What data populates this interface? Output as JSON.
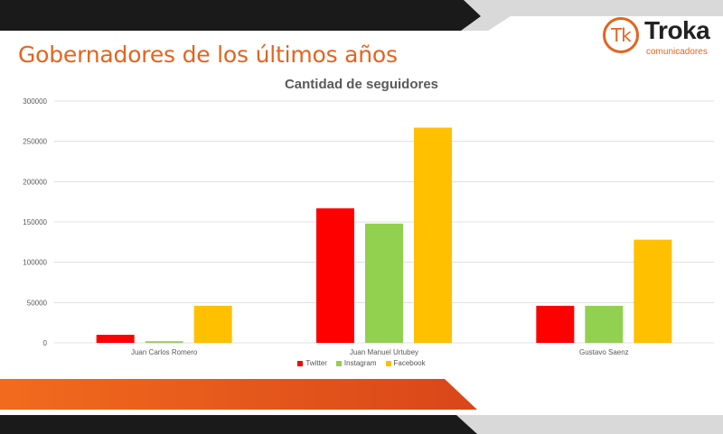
{
  "slide": {
    "title": "Gobernadores de los últimos años"
  },
  "logo": {
    "mark": "Tk",
    "name": "Troka",
    "tagline": "comunicadores"
  },
  "colors": {
    "accent": "#e3641f",
    "dark_band": "#1a1a1a",
    "grey_band": "#d9d9d9"
  },
  "chart_data": {
    "type": "bar",
    "title": "Cantidad de seguidores",
    "xlabel": "",
    "ylabel": "",
    "categories": [
      "Juan Carlos Romero",
      "Juan Manuel Urtubey",
      "Gustavo Saenz"
    ],
    "series": [
      {
        "name": "Twitter",
        "color": "#ff0000",
        "values": [
          10000,
          167000,
          46000
        ]
      },
      {
        "name": "Instagram",
        "color": "#92d050",
        "values": [
          2000,
          148000,
          46000
        ]
      },
      {
        "name": "Facebook",
        "color": "#ffc000",
        "values": [
          46000,
          267000,
          128000
        ]
      }
    ],
    "ylim": [
      0,
      300000
    ],
    "yticks": [
      0,
      50000,
      100000,
      150000,
      200000,
      250000,
      300000
    ],
    "grid": true,
    "legend": "bottom"
  }
}
